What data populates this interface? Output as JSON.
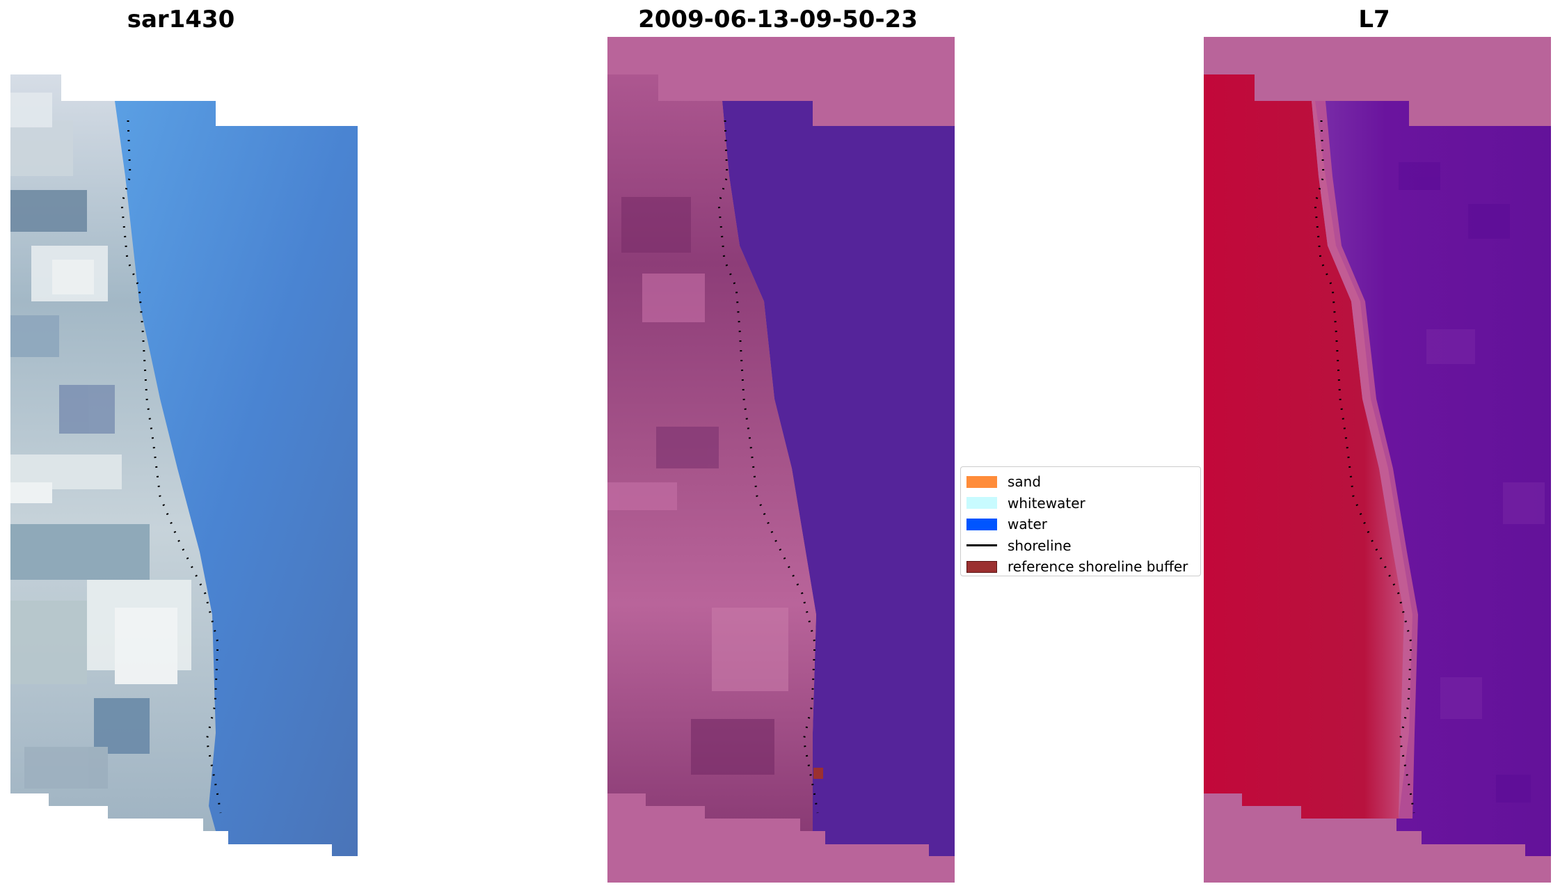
{
  "panels": [
    {
      "title": "sar1430",
      "kind": "rgb"
    },
    {
      "title": "2009-06-13-09-50-23",
      "kind": "classified"
    },
    {
      "title": "L7",
      "kind": "index"
    }
  ],
  "legend": {
    "items": [
      {
        "label": "sand",
        "color": "#ff8c3a",
        "type": "patch"
      },
      {
        "label": "whitewater",
        "color": "#c8fbff",
        "type": "patch"
      },
      {
        "label": "water",
        "color": "#0055ff",
        "type": "patch"
      },
      {
        "label": "shoreline",
        "color": "#000000",
        "type": "line"
      },
      {
        "label": "reference shoreline buffer",
        "color": "#9b3030",
        "type": "patch"
      }
    ]
  },
  "colors": {
    "sea_rgb": "#4a82cc",
    "sea_shallow": "#5c9fe0",
    "classified_water": "#55249a",
    "mask_pink": "#b9649a",
    "index_land": "#bd0b3a",
    "index_water": "#64109a"
  }
}
